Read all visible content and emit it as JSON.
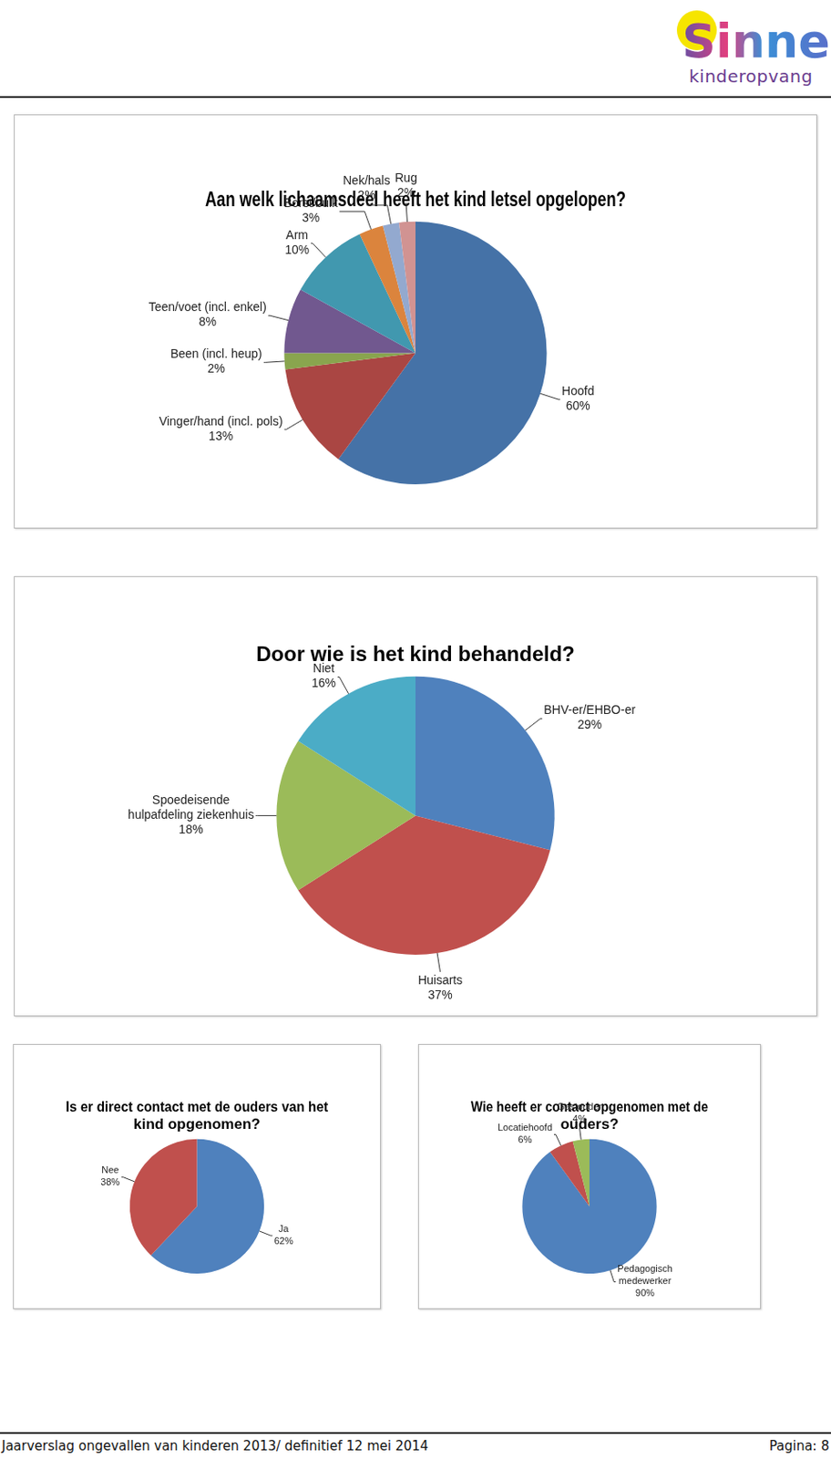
{
  "logo": {
    "name": "Sinne",
    "tagline": "kinderopvang"
  },
  "footer": {
    "left": "Jaarverslag ongevallen van kinderen 2013/ definitief 12 mei 2014",
    "right": "Pagina: 8"
  },
  "chart_data": [
    {
      "type": "pie",
      "title": "Aan welk lichaamsdeel heeft het kind letsel opgelopen?",
      "categories": [
        "Hoofd",
        "Vinger/hand (incl. pols)",
        "Been (incl. heup)",
        "Teen/voet (incl. enkel)",
        "Arm",
        "Borst/buik",
        "Nek/hals",
        "Rug"
      ],
      "values": [
        60,
        13,
        2,
        8,
        10,
        3,
        2,
        2
      ],
      "value_labels": [
        "60%",
        "13%",
        "2%",
        "8%",
        "10%",
        "3%",
        "2%",
        "2%"
      ],
      "colors": [
        "#4572a7",
        "#aa4643",
        "#89a54e",
        "#71588f",
        "#4198af",
        "#db843d",
        "#93a9cf",
        "#d19392"
      ],
      "data_labels": true
    },
    {
      "type": "pie",
      "title": "Door wie is het kind behandeld?",
      "categories": [
        "BHV-er/EHBO-er",
        "Huisarts",
        "Spoedeisende hulpafdeling ziekenhuis",
        "Niet"
      ],
      "values": [
        29,
        37,
        18,
        16
      ],
      "value_labels": [
        "29%",
        "37%",
        "18%",
        "16%"
      ],
      "colors": [
        "#4f81bd",
        "#c0504d",
        "#9bbb59",
        "#4bacc6"
      ],
      "data_labels": true
    },
    {
      "type": "pie",
      "title": "Is er direct contact met de ouders van het kind opgenomen?",
      "categories": [
        "Ja",
        "Nee"
      ],
      "values": [
        62,
        38
      ],
      "value_labels": [
        "62%",
        "38%"
      ],
      "colors": [
        "#4f81bd",
        "#c0504d"
      ],
      "data_labels": true
    },
    {
      "type": "pie",
      "title": "Wie heeft er contact opgenomen met de ouders?",
      "categories": [
        "Pedagogisch medewerker",
        "Locatiehoofd",
        "Gastouder"
      ],
      "values": [
        90,
        6,
        4
      ],
      "value_labels": [
        "90%",
        "6%",
        "4%"
      ],
      "colors": [
        "#4f81bd",
        "#c0504d",
        "#9bbb59"
      ],
      "data_labels": true
    }
  ]
}
